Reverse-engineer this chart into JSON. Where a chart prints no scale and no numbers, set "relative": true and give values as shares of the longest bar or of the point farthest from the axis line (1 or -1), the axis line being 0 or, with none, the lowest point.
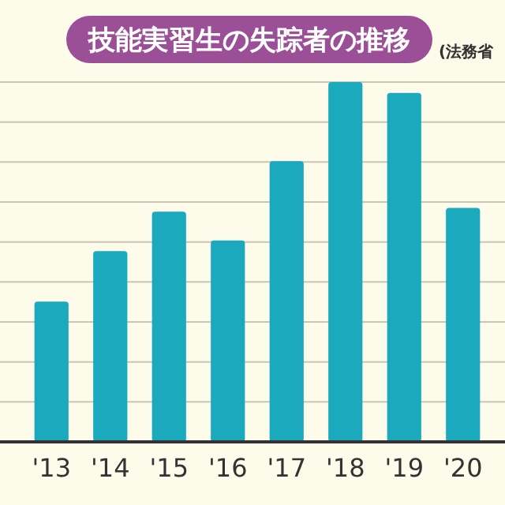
{
  "chart_data": {
    "type": "bar",
    "title": "技能実習生の失踪者の推移",
    "annotations": [
      "(法務省"
    ],
    "categories": [
      "'13",
      "'14",
      "'15",
      "'16",
      "'17",
      "'18",
      "'19",
      "'20"
    ],
    "values": [
      0.39,
      0.53,
      0.64,
      0.56,
      0.78,
      1,
      0.97,
      0.65
    ],
    "color": "#1aa9bd",
    "relative": true,
    "grid": "y"
  }
}
